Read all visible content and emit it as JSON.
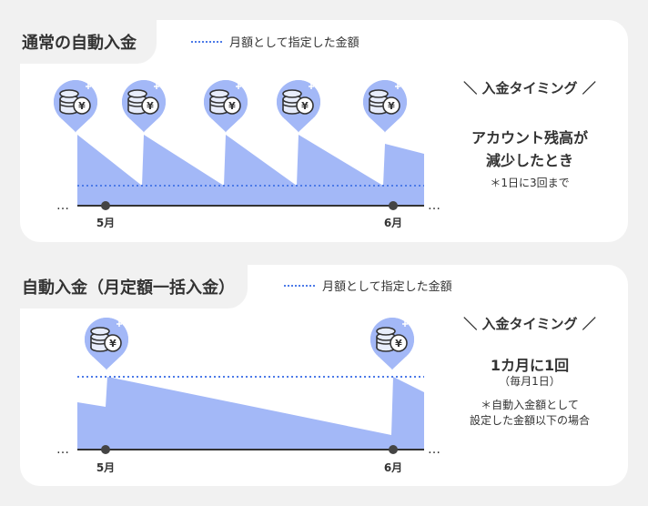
{
  "colors": {
    "background": "#f1f1f1",
    "panel": "#ffffff",
    "fill": "#a3b8f7",
    "threshold_line": "#4d7be8",
    "axis": "#333333",
    "pin": "#a3b8f7",
    "coin": "#c9d4f5"
  },
  "section1": {
    "title": "通常の自動入金",
    "legend": "月額として指定した金額",
    "timing_title": "＼ 入金タイミング ／",
    "main_text": "アカウント残高が\n減少したとき",
    "sub_text": "＊1日に3回まで",
    "tick_labels": [
      "5月",
      "6月"
    ],
    "ellipsis": "…",
    "deposit_icon": "coin-yen-icon",
    "deposit_count": 5
  },
  "section2": {
    "title": "自動入金（月定額一括入金）",
    "legend": "月額として指定した金額",
    "timing_title": "＼ 入金タイミング ／",
    "main_text": "1カ月に1回",
    "sub_text_paren": "（毎月1日）",
    "sub_text": "＊自動入金額として\n設定した金額以下の場合",
    "tick_labels": [
      "5月",
      "6月"
    ],
    "ellipsis": "…",
    "deposit_icon": "coin-yen-icon",
    "deposit_count": 2
  }
}
